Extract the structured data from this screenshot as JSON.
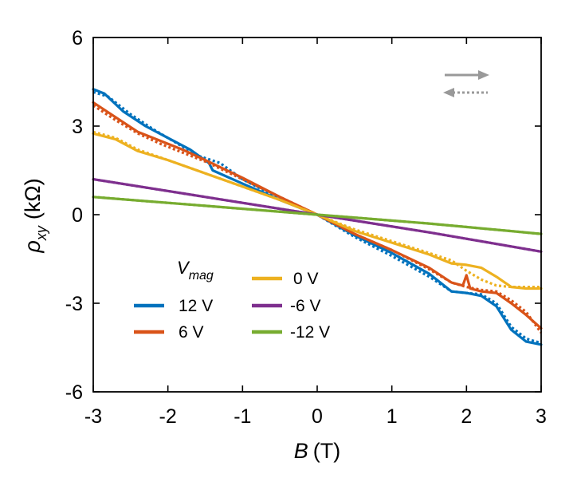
{
  "chart_data": {
    "type": "line",
    "xlabel": "B",
    "xunit": "(T)",
    "ylabel": "ρ",
    "ylabel_sub": "xy",
    "yunit": "(kΩ)",
    "xlim": [
      -3,
      3
    ],
    "ylim": [
      -6,
      6
    ],
    "xticks": [
      "-3",
      "-2",
      "-1",
      "0",
      "1",
      "2",
      "3"
    ],
    "yticks": [
      "-6",
      "-3",
      "0",
      "3",
      "6"
    ],
    "legend_title": "V",
    "legend_title_sub": "mag",
    "arrow_legend": [
      "sweep up (solid)",
      "sweep down (dotted)"
    ],
    "series": [
      {
        "name": "12 V",
        "color": "#0072BD",
        "solid": [
          [
            -3,
            4.25
          ],
          [
            -2.85,
            4.1
          ],
          [
            -2.6,
            3.5
          ],
          [
            -2.3,
            3.0
          ],
          [
            -2.0,
            2.6
          ],
          [
            -1.7,
            2.2
          ],
          [
            -1.45,
            1.75
          ],
          [
            -1.4,
            1.5
          ],
          [
            -1.0,
            1.05
          ],
          [
            -0.5,
            0.5
          ],
          [
            0,
            0
          ],
          [
            0.5,
            -0.7
          ],
          [
            1.0,
            -1.3
          ],
          [
            1.5,
            -2.0
          ],
          [
            1.8,
            -2.6
          ],
          [
            2.0,
            -2.65
          ],
          [
            2.2,
            -2.75
          ],
          [
            2.4,
            -3.1
          ],
          [
            2.6,
            -3.9
          ],
          [
            2.8,
            -4.3
          ],
          [
            3.0,
            -4.4
          ]
        ],
        "dotted": [
          [
            -3,
            4.15
          ],
          [
            -2.8,
            4.0
          ],
          [
            -2.5,
            3.4
          ],
          [
            -2.2,
            2.9
          ],
          [
            -1.9,
            2.45
          ],
          [
            -1.6,
            2.0
          ],
          [
            -1.3,
            1.75
          ],
          [
            -1.0,
            1.2
          ],
          [
            -0.5,
            0.55
          ],
          [
            0,
            0
          ],
          [
            0.5,
            -0.75
          ],
          [
            1.0,
            -1.4
          ],
          [
            1.5,
            -2.1
          ],
          [
            1.8,
            -2.6
          ],
          [
            2.0,
            -2.65
          ],
          [
            2.2,
            -2.7
          ],
          [
            2.4,
            -3.0
          ],
          [
            2.6,
            -3.8
          ],
          [
            2.8,
            -4.2
          ],
          [
            3.0,
            -4.35
          ]
        ]
      },
      {
        "name": "6 V",
        "color": "#D95319",
        "solid": [
          [
            -3,
            3.8
          ],
          [
            -2.7,
            3.3
          ],
          [
            -2.4,
            2.8
          ],
          [
            -2.1,
            2.5
          ],
          [
            -1.8,
            2.2
          ],
          [
            -1.5,
            1.85
          ],
          [
            -1.0,
            1.25
          ],
          [
            -0.5,
            0.6
          ],
          [
            0,
            0
          ],
          [
            0.5,
            -0.65
          ],
          [
            1.0,
            -1.2
          ],
          [
            1.5,
            -1.8
          ],
          [
            1.8,
            -2.3
          ],
          [
            1.95,
            -2.4
          ],
          [
            2.0,
            -2.05
          ],
          [
            2.05,
            -2.5
          ],
          [
            2.2,
            -2.6
          ],
          [
            2.4,
            -2.65
          ],
          [
            2.6,
            -3.0
          ],
          [
            2.8,
            -3.4
          ],
          [
            3.0,
            -3.85
          ]
        ],
        "dotted": [
          [
            -3,
            3.7
          ],
          [
            -2.7,
            3.2
          ],
          [
            -2.4,
            2.75
          ],
          [
            -2.1,
            2.4
          ],
          [
            -1.8,
            2.1
          ],
          [
            -1.5,
            1.8
          ],
          [
            -1.0,
            1.2
          ],
          [
            -0.5,
            0.6
          ],
          [
            0,
            0
          ],
          [
            0.5,
            -0.65
          ],
          [
            1.0,
            -1.2
          ],
          [
            1.5,
            -1.85
          ],
          [
            1.8,
            -2.3
          ],
          [
            2.0,
            -2.45
          ],
          [
            2.2,
            -2.55
          ],
          [
            2.4,
            -2.6
          ],
          [
            2.6,
            -2.9
          ],
          [
            2.8,
            -3.3
          ],
          [
            3.0,
            -4.0
          ]
        ]
      },
      {
        "name": "0 V",
        "color": "#EDB120",
        "solid": [
          [
            -3,
            2.75
          ],
          [
            -2.7,
            2.55
          ],
          [
            -2.4,
            2.15
          ],
          [
            -2.0,
            1.85
          ],
          [
            -1.5,
            1.4
          ],
          [
            -1.0,
            0.95
          ],
          [
            -0.5,
            0.5
          ],
          [
            0,
            0
          ],
          [
            0.5,
            -0.55
          ],
          [
            1.0,
            -0.95
          ],
          [
            1.5,
            -1.35
          ],
          [
            1.8,
            -1.65
          ],
          [
            2.0,
            -1.7
          ],
          [
            2.2,
            -1.8
          ],
          [
            2.4,
            -2.1
          ],
          [
            2.6,
            -2.45
          ],
          [
            2.8,
            -2.5
          ],
          [
            3.0,
            -2.5
          ]
        ],
        "dotted": [
          [
            -3,
            2.8
          ],
          [
            -2.7,
            2.6
          ],
          [
            -2.4,
            2.2
          ],
          [
            -2.0,
            1.85
          ],
          [
            -1.5,
            1.4
          ],
          [
            -1.0,
            0.95
          ],
          [
            -0.5,
            0.5
          ],
          [
            0,
            0
          ],
          [
            0.5,
            -0.5
          ],
          [
            1.0,
            -0.9
          ],
          [
            1.5,
            -1.3
          ],
          [
            1.8,
            -1.55
          ],
          [
            2.0,
            -1.9
          ],
          [
            2.2,
            -2.2
          ],
          [
            2.4,
            -2.4
          ],
          [
            2.6,
            -2.45
          ],
          [
            2.8,
            -2.45
          ],
          [
            3.0,
            -2.45
          ]
        ]
      },
      {
        "name": "-6 V",
        "color": "#7E2F8E",
        "solid": [
          [
            -3,
            1.2
          ],
          [
            -1.5,
            0.6
          ],
          [
            0,
            0
          ],
          [
            1.5,
            -0.6
          ],
          [
            3,
            -1.25
          ]
        ],
        "dotted": [
          [
            -3,
            1.2
          ],
          [
            -1.5,
            0.6
          ],
          [
            0,
            0
          ],
          [
            1.5,
            -0.6
          ],
          [
            3,
            -1.25
          ]
        ]
      },
      {
        "name": "-12 V",
        "color": "#77AC30",
        "solid": [
          [
            -3,
            0.6
          ],
          [
            -1.5,
            0.3
          ],
          [
            0,
            0
          ],
          [
            1.5,
            -0.3
          ],
          [
            3,
            -0.65
          ]
        ],
        "dotted": [
          [
            -3,
            0.6
          ],
          [
            -1.5,
            0.3
          ],
          [
            0,
            0
          ],
          [
            1.5,
            -0.3
          ],
          [
            3,
            -0.65
          ]
        ]
      }
    ]
  }
}
